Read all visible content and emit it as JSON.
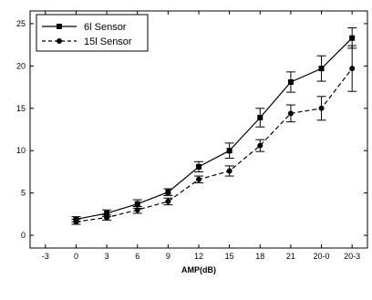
{
  "chart_data": {
    "type": "line",
    "title": "",
    "xlabel": "AMP(dB)",
    "ylabel": "",
    "x_ticks": [
      "-3",
      "0",
      "3",
      "6",
      "9",
      "12",
      "15",
      "18",
      "21",
      "20-0",
      "20-3"
    ],
    "y_ticks": [
      "0",
      "5",
      "10",
      "15",
      "20",
      "25"
    ],
    "ylim": [
      -1.5,
      26.5
    ],
    "legend_position": "top-left",
    "grid": false,
    "categories": [
      "0",
      "3",
      "6",
      "9",
      "12",
      "15",
      "18",
      "21",
      "20-0",
      "20-3"
    ],
    "series": [
      {
        "name": "6l Sensor",
        "marker": "square",
        "line_style": "solid",
        "values": [
          1.9,
          2.6,
          3.7,
          5.1,
          8.1,
          10.0,
          13.9,
          18.1,
          19.7,
          23.3
        ],
        "errors": [
          0.3,
          0.4,
          0.5,
          0.4,
          0.6,
          0.9,
          1.1,
          1.2,
          1.5,
          1.2
        ]
      },
      {
        "name": "15l Sensor",
        "marker": "circle",
        "line_style": "dashed",
        "values": [
          1.6,
          2.1,
          3.0,
          4.0,
          6.6,
          7.6,
          10.6,
          14.4,
          15.0,
          19.7
        ],
        "errors": [
          0.3,
          0.3,
          0.4,
          0.4,
          0.4,
          0.6,
          0.7,
          1.0,
          1.4,
          2.7
        ]
      }
    ]
  }
}
